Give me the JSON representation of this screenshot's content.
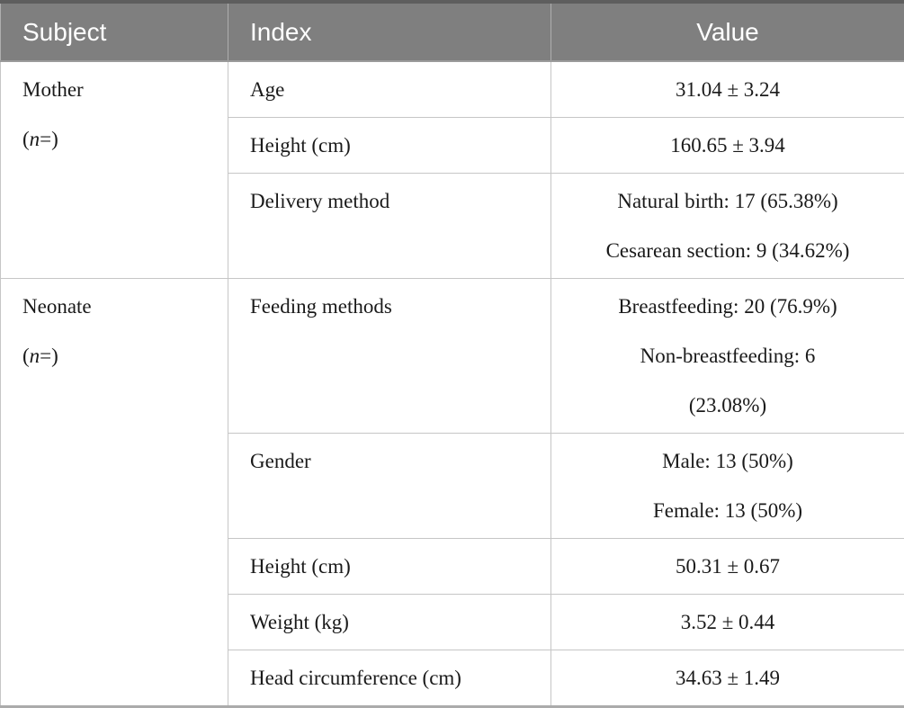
{
  "table": {
    "headers": [
      "Subject",
      "Index",
      "Value"
    ],
    "sections": [
      {
        "subject": "Mother",
        "note_open": "(",
        "note_var": "n",
        "note_close": "=)",
        "rows": [
          {
            "index": "Age",
            "value_lines": [
              "31.04 ± 3.24"
            ]
          },
          {
            "index": "Height (cm)",
            "value_lines": [
              "160.65 ± 3.94"
            ]
          },
          {
            "index": "Delivery method",
            "value_lines": [
              "Natural birth: 17 (65.38%)",
              "Cesarean section: 9 (34.62%)"
            ]
          }
        ]
      },
      {
        "subject": "Neonate",
        "note_open": "(",
        "note_var": "n",
        "note_close": "=)",
        "rows": [
          {
            "index": "Feeding methods",
            "value_lines": [
              "Breastfeeding: 20 (76.9%)",
              "Non-breastfeeding: 6",
              "(23.08%)"
            ]
          },
          {
            "index": "Gender",
            "value_lines": [
              "Male: 13 (50%)",
              "Female: 13 (50%)"
            ]
          },
          {
            "index": "Height (cm)",
            "value_lines": [
              "50.31 ± 0.67"
            ]
          },
          {
            "index": "Weight (kg)",
            "value_lines": [
              "3.52 ± 0.44"
            ]
          },
          {
            "index": "Head circumference (cm)",
            "value_lines": [
              "34.63 ± 1.49"
            ]
          }
        ]
      }
    ]
  },
  "colors": {
    "header-bg": "#7f7f7f",
    "header-text": "#ffffff",
    "grid": "#c6c6c6",
    "top-border": "#5e5e5e",
    "bottom-border": "#ababab",
    "body-text": "#1a1a1a"
  }
}
